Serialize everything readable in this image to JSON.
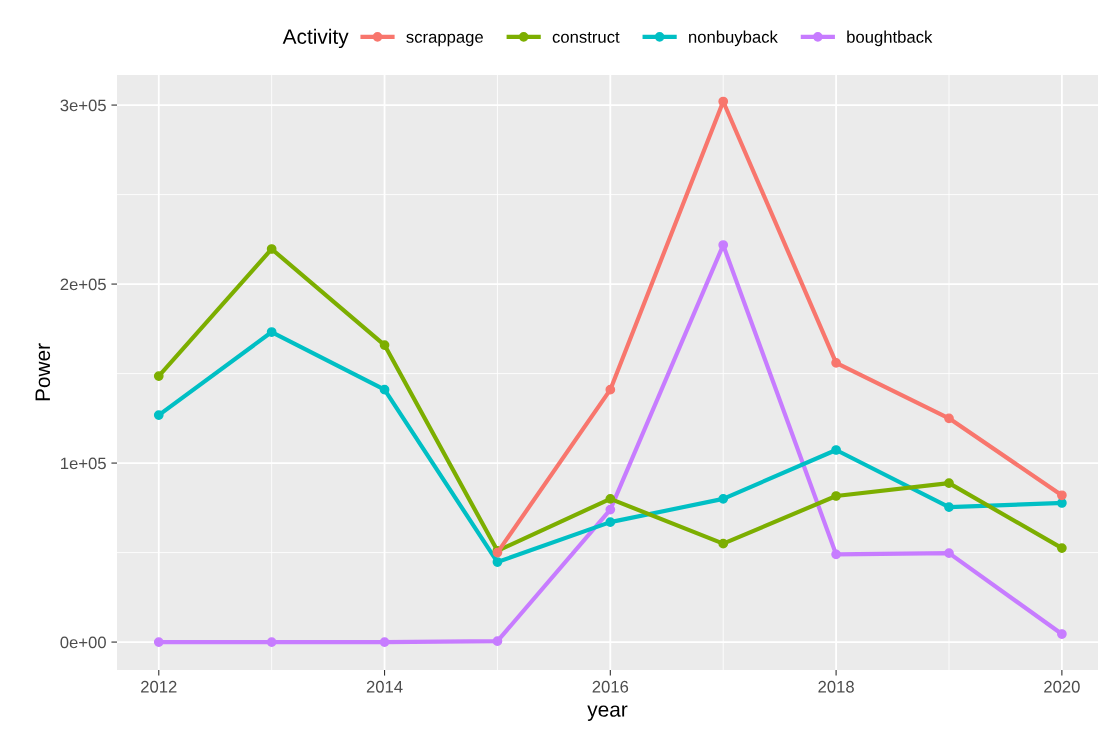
{
  "chart_data": {
    "type": "line",
    "xlabel": "year",
    "ylabel": "Power",
    "legend_title": "Activity",
    "legend": "top",
    "grid": true,
    "marker": "circle",
    "line_style": "solid",
    "x": [
      2012,
      2013,
      2014,
      2015,
      2016,
      2017,
      2018,
      2019,
      2020
    ],
    "xlim": [
      2011.63,
      2020.32
    ],
    "xticks": [
      2012,
      2014,
      2016,
      2018,
      2020
    ],
    "ylim": [
      -15600,
      316800
    ],
    "yticks": [
      {
        "value": 0,
        "label": "0e+00"
      },
      {
        "value": 100000,
        "label": "1e+05"
      },
      {
        "value": 200000,
        "label": "2e+05"
      },
      {
        "value": 300000,
        "label": "3e+05"
      }
    ],
    "series": [
      {
        "name": "scrappage",
        "color": "#f8766d",
        "values": [
          null,
          null,
          null,
          50000,
          141000,
          302000,
          156000,
          125000,
          82000
        ]
      },
      {
        "name": "construct",
        "color": "#7cae00",
        "values": [
          148600,
          219600,
          165900,
          51000,
          80000,
          55000,
          81600,
          88800,
          52500
        ]
      },
      {
        "name": "nonbuyback",
        "color": "#00bfc4",
        "values": [
          126800,
          173200,
          141000,
          44700,
          67000,
          80000,
          107300,
          75400,
          77700
        ]
      },
      {
        "name": "boughtback",
        "color": "#c77cff",
        "values": [
          0,
          0,
          0,
          500,
          74000,
          221800,
          49000,
          49700,
          4500
        ]
      }
    ]
  }
}
